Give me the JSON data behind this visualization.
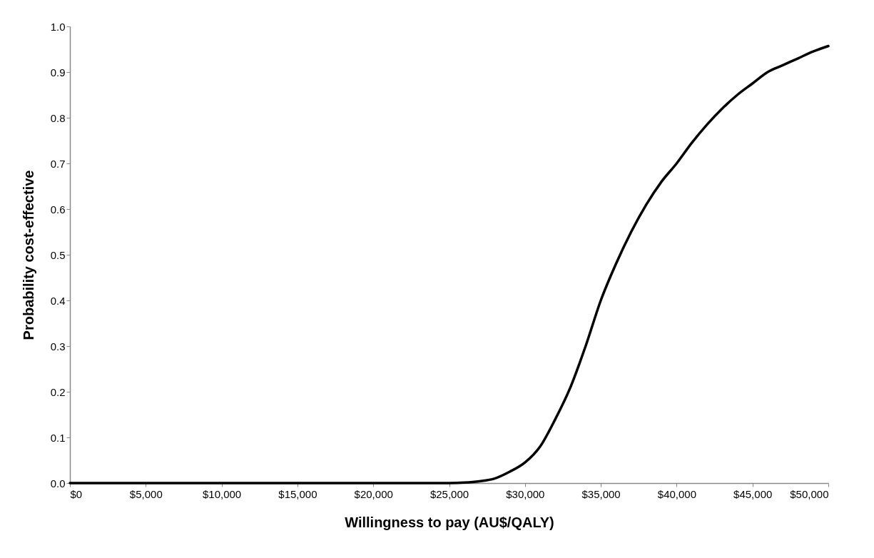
{
  "chart_data": {
    "type": "line",
    "xlabel": "Willingness to pay (AU$/QALY)",
    "ylabel": "Probability cost-effective",
    "x": [
      0,
      5000,
      10000,
      15000,
      20000,
      24000,
      25000,
      26000,
      27000,
      28000,
      29000,
      30000,
      31000,
      32000,
      33000,
      34000,
      35000,
      36000,
      37000,
      38000,
      39000,
      40000,
      41000,
      42000,
      43000,
      44000,
      45000,
      46000,
      47000,
      48000,
      49000,
      50000
    ],
    "series": [
      {
        "color": "#000000",
        "values": [
          0,
          0,
          0,
          0,
          0,
          0,
          0,
          0.001,
          0.004,
          0.01,
          0.025,
          0.045,
          0.08,
          0.14,
          0.21,
          0.3,
          0.4,
          0.48,
          0.55,
          0.61,
          0.66,
          0.7,
          0.745,
          0.785,
          0.82,
          0.85,
          0.875,
          0.9,
          0.915,
          0.93,
          0.945,
          0.957
        ]
      }
    ],
    "xlim": [
      0,
      50000
    ],
    "ylim": [
      0,
      1
    ],
    "xticks": [
      {
        "value": 0,
        "label": "$0"
      },
      {
        "value": 5000,
        "label": "$5,000"
      },
      {
        "value": 10000,
        "label": "$10,000"
      },
      {
        "value": 15000,
        "label": "$15,000"
      },
      {
        "value": 20000,
        "label": "$20,000"
      },
      {
        "value": 25000,
        "label": "$25,000"
      },
      {
        "value": 30000,
        "label": "$30,000"
      },
      {
        "value": 35000,
        "label": "$35,000"
      },
      {
        "value": 40000,
        "label": "$40,000"
      },
      {
        "value": 45000,
        "label": "$45,000"
      },
      {
        "value": 50000,
        "label": "$50,000"
      }
    ],
    "yticks": [
      {
        "value": 0,
        "label": "0.0"
      },
      {
        "value": 0.1,
        "label": "0.1"
      },
      {
        "value": 0.2,
        "label": "0.2"
      },
      {
        "value": 0.3,
        "label": "0.3"
      },
      {
        "value": 0.4,
        "label": "0.4"
      },
      {
        "value": 0.5,
        "label": "0.5"
      },
      {
        "value": 0.6,
        "label": "0.6"
      },
      {
        "value": 0.7,
        "label": "0.7"
      },
      {
        "value": 0.8,
        "label": "0.8"
      },
      {
        "value": 0.9,
        "label": "0.9"
      },
      {
        "value": 1,
        "label": "1.0"
      }
    ],
    "grid": false,
    "marker": "none",
    "line_style": "solid"
  }
}
